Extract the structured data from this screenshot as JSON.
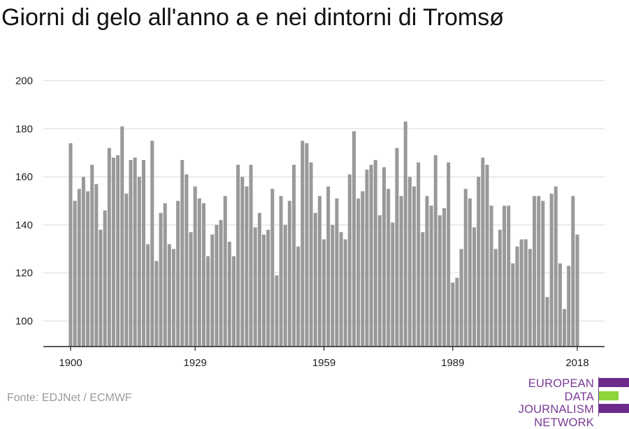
{
  "title": "Giorni di gelo all'anno a e nei dintorni di Tromsø",
  "source": "Fonte: EDJNet / ECMWF",
  "logo": {
    "lines": [
      "EUROPEAN",
      "DATA JOURNALISM",
      "NETWORK"
    ],
    "colors": {
      "purple": "#6b2a8c",
      "green": "#8cd63a"
    }
  },
  "colors": {
    "bar": "#999999",
    "grid": "#dddddd",
    "axis": "#222222"
  },
  "chart_data": {
    "type": "bar",
    "title": "Giorni di gelo all'anno a e nei dintorni di Tromsø",
    "xlabel": "",
    "ylabel": "",
    "ylim": [
      90,
      200
    ],
    "yticks": [
      100,
      120,
      140,
      160,
      180,
      200
    ],
    "xticks": [
      1900,
      1929,
      1959,
      1989,
      2018
    ],
    "grid": true,
    "x": [
      1900,
      1901,
      1902,
      1903,
      1904,
      1905,
      1906,
      1907,
      1908,
      1909,
      1910,
      1911,
      1912,
      1913,
      1914,
      1915,
      1916,
      1917,
      1918,
      1919,
      1920,
      1921,
      1922,
      1923,
      1924,
      1925,
      1926,
      1927,
      1928,
      1929,
      1930,
      1931,
      1932,
      1933,
      1934,
      1935,
      1936,
      1937,
      1938,
      1939,
      1940,
      1941,
      1942,
      1943,
      1944,
      1945,
      1946,
      1947,
      1948,
      1949,
      1950,
      1951,
      1952,
      1953,
      1954,
      1955,
      1956,
      1957,
      1958,
      1959,
      1960,
      1961,
      1962,
      1963,
      1964,
      1965,
      1966,
      1967,
      1968,
      1969,
      1970,
      1971,
      1972,
      1973,
      1974,
      1975,
      1976,
      1977,
      1978,
      1979,
      1980,
      1981,
      1982,
      1983,
      1984,
      1985,
      1986,
      1987,
      1988,
      1989,
      1990,
      1991,
      1992,
      1993,
      1994,
      1995,
      1996,
      1997,
      1998,
      1999,
      2000,
      2001,
      2002,
      2003,
      2004,
      2005,
      2006,
      2007,
      2008,
      2009,
      2010,
      2011,
      2012,
      2013,
      2014,
      2015,
      2016,
      2017,
      2018
    ],
    "values": [
      174,
      150,
      155,
      160,
      154,
      165,
      157,
      138,
      146,
      172,
      168,
      169,
      181,
      153,
      167,
      168,
      160,
      167,
      132,
      175,
      125,
      145,
      149,
      132,
      130,
      150,
      167,
      161,
      137,
      156,
      151,
      149,
      127,
      136,
      140,
      142,
      152,
      133,
      127,
      165,
      160,
      156,
      165,
      139,
      145,
      136,
      138,
      155,
      119,
      152,
      140,
      150,
      165,
      131,
      175,
      174,
      166,
      145,
      152,
      134,
      156,
      140,
      151,
      137,
      134,
      161,
      179,
      151,
      154,
      163,
      165,
      167,
      144,
      164,
      155,
      141,
      172,
      152,
      183,
      160,
      156,
      166,
      137,
      152,
      148,
      169,
      144,
      147,
      166,
      116,
      118,
      130,
      155,
      151,
      139,
      160,
      168,
      165,
      148,
      130,
      138,
      148,
      148,
      124,
      131,
      134,
      134,
      130,
      152,
      152,
      150,
      110,
      153,
      156,
      124,
      105,
      123,
      152,
      136
    ]
  }
}
